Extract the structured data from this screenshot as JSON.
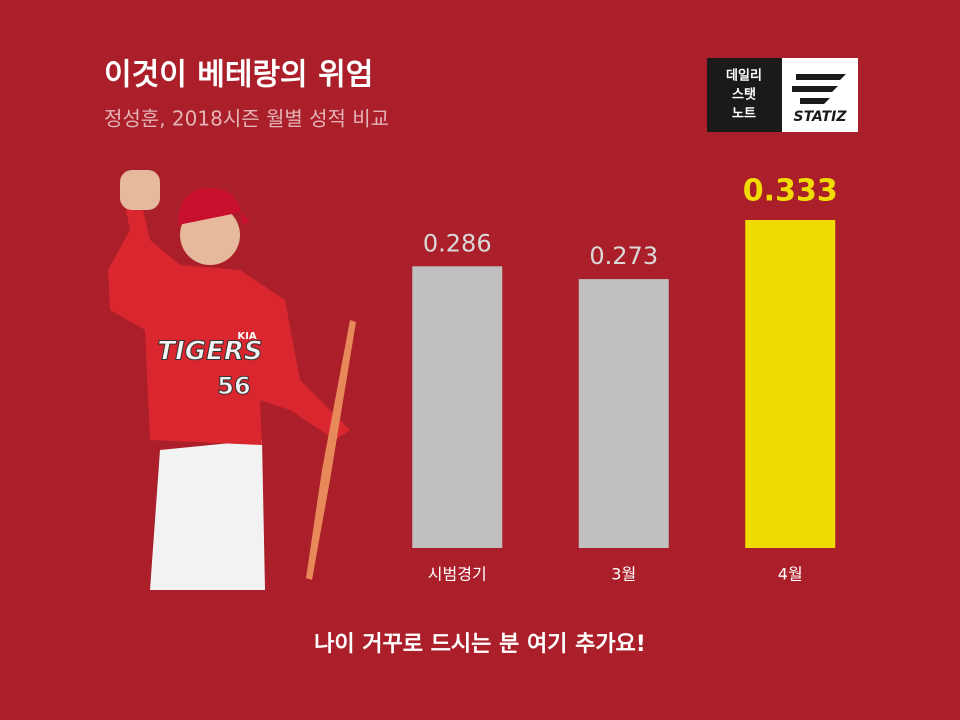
{
  "chart_data": {
    "type": "bar",
    "title": "이것이 베테랑의 위엄",
    "subtitle": "정성훈, 2018시즌 월별 성적 비교",
    "categories": [
      "시범경기",
      "3월",
      "4월"
    ],
    "values": [
      0.286,
      0.273,
      0.333
    ],
    "colors": [
      "#c0c0c0",
      "#c0c0c0",
      "#f0dc00"
    ],
    "footer": "나이 거꾸로 드시는 분 여기 추가요!"
  },
  "logo": {
    "lines": [
      "데일리",
      "스탯",
      "노트"
    ],
    "brand": "STATIZ"
  },
  "photo": {
    "team": "KIA",
    "jersey": "TIGERS",
    "number": "56"
  }
}
